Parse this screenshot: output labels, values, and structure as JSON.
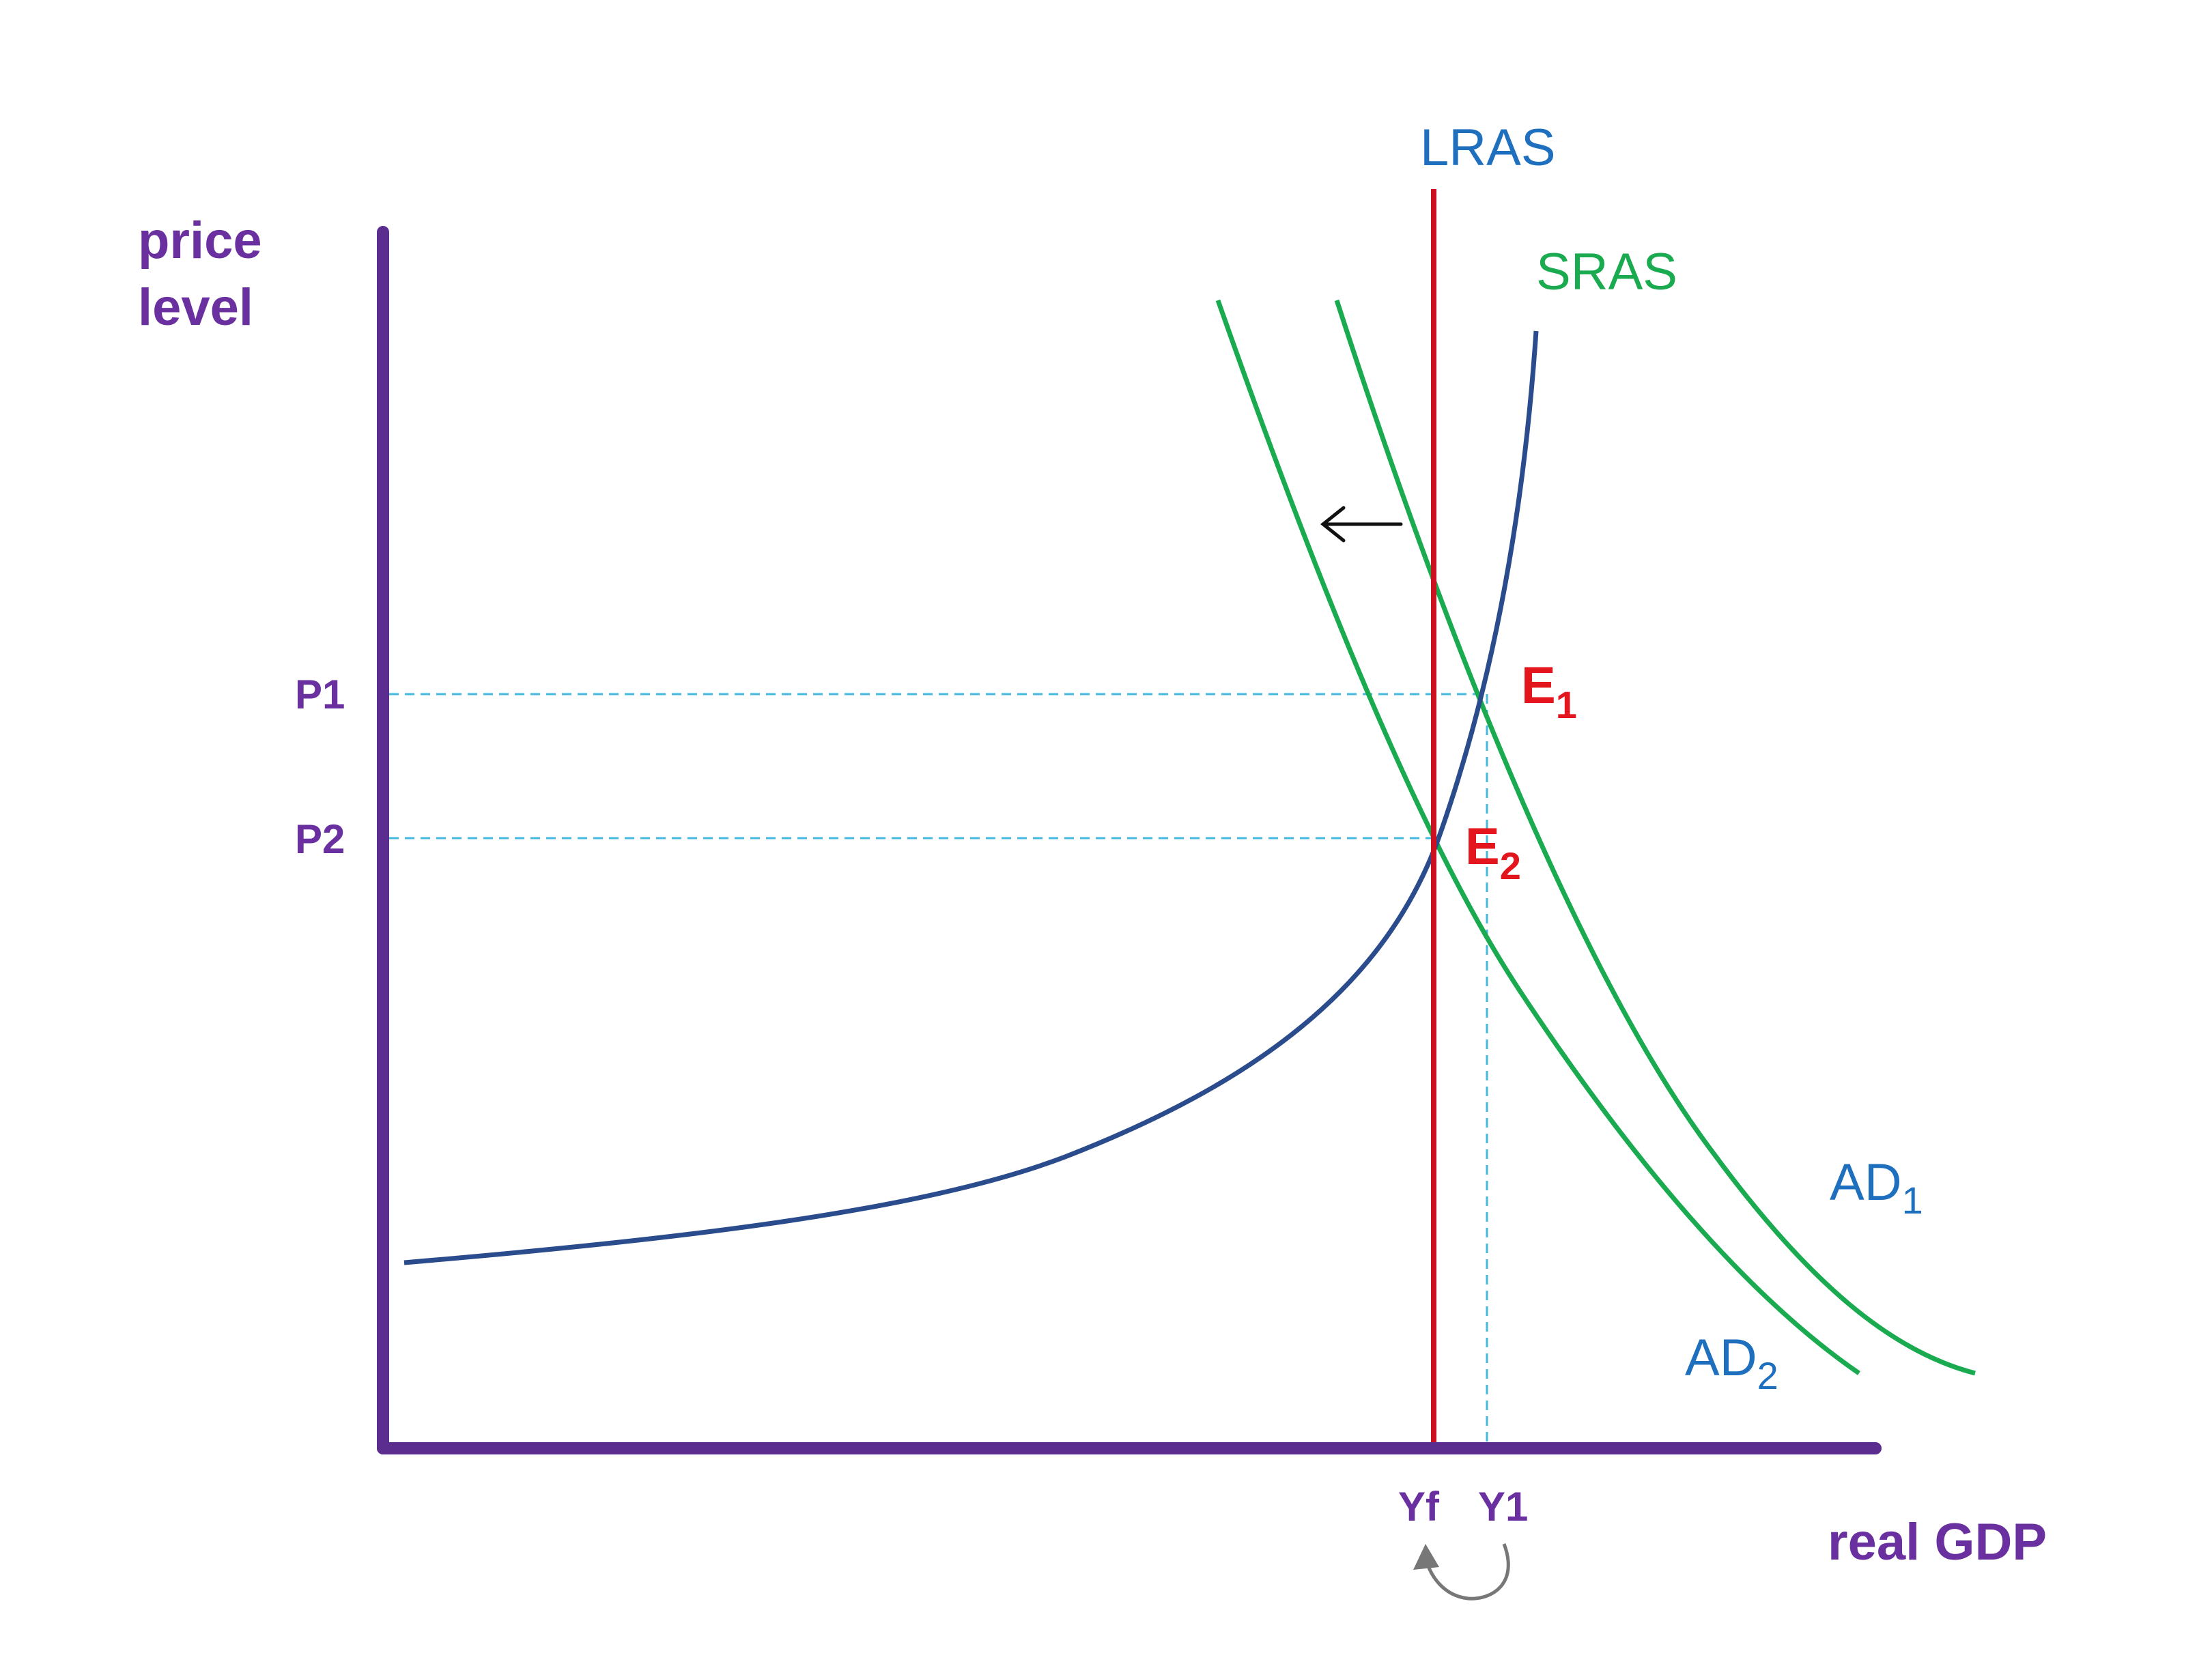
{
  "colors": {
    "axes": "#5b2d8e",
    "axis_text": "#6a30a0",
    "lras": "#cc1020",
    "sras": "#2b4c8c",
    "ad": "#1aaa50",
    "guide": "#45b8e0",
    "curve_label": "#1f6fbf",
    "equilibrium": "#e3161d",
    "arrow": "#111111",
    "loop_arrow": "#777777"
  },
  "chart_data": {
    "type": "line",
    "title": "",
    "ylabel_line1": "price",
    "ylabel_line2": "level",
    "xlabel": "real GDP",
    "price_ticks": [
      {
        "label": "P1",
        "value": 1
      },
      {
        "label": "P2",
        "value": 2
      }
    ],
    "output_ticks": [
      {
        "label": "Yf",
        "value": 1
      },
      {
        "label": "Y1",
        "value": 2
      }
    ],
    "lras": {
      "name": "LRAS",
      "at": "Yf"
    },
    "sras": {
      "name": "SRAS"
    },
    "demand_curves": [
      {
        "name": "AD",
        "subscript": "1"
      },
      {
        "name": "AD",
        "subscript": "2"
      }
    ],
    "equilibria": [
      {
        "name": "E",
        "subscript": "1",
        "price": "P1",
        "output": "Y1"
      },
      {
        "name": "E",
        "subscript": "2",
        "price": "P2",
        "output": "Yf"
      }
    ],
    "shift": "AD1 to AD2 (leftward)"
  }
}
